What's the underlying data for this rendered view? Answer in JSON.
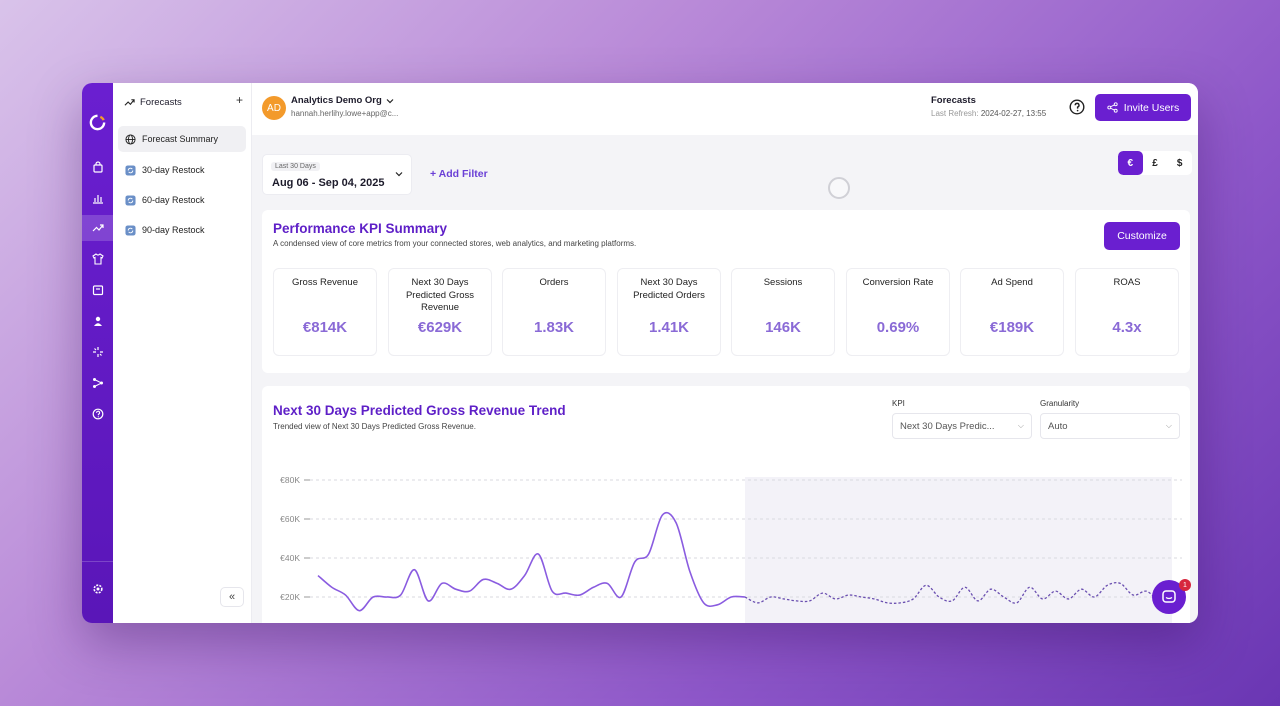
{
  "rail": {
    "icons": [
      "logo-icon",
      "shopping-bag-icon",
      "bar-chart-icon",
      "trending-up-icon",
      "shirt-icon",
      "box-icon",
      "user-icon",
      "sparkle-icon",
      "network-icon",
      "help-icon",
      "settings-icon"
    ]
  },
  "sidebar": {
    "title": "Forecasts",
    "add": "+",
    "items": [
      {
        "label": "Forecast Summary",
        "icon": "globe-icon"
      },
      {
        "label": "30-day Restock",
        "icon": "restock-icon"
      },
      {
        "label": "60-day Restock",
        "icon": "restock-icon"
      },
      {
        "label": "90-day Restock",
        "icon": "restock-icon"
      }
    ],
    "collapse": "«"
  },
  "header": {
    "avatar": "AD",
    "org_name": "Analytics Demo Org",
    "org_email": "hannah.herlihy.lowe+app@c...",
    "title": "Forecasts",
    "refresh_label": "Last Refresh:",
    "refresh_value": "2024-02-27, 13:55",
    "invite_label": "Invite Users"
  },
  "filters": {
    "date_label": "Last 30 Days",
    "date_value": "Aug 06 - Sep 04, 2025",
    "add_filter": "+ Add Filter",
    "currencies": [
      "€",
      "£",
      "$"
    ],
    "selected_currency": "€"
  },
  "kpi": {
    "title": "Performance KPI Summary",
    "subtitle": "A condensed view of core metrics from your connected stores, web analytics, and marketing platforms.",
    "customize": "Customize",
    "tiles": [
      {
        "label": "Gross Revenue",
        "value": "€814K"
      },
      {
        "label": "Next 30 Days Predicted Gross Revenue",
        "value": "€629K"
      },
      {
        "label": "Orders",
        "value": "1.83K"
      },
      {
        "label": "Next 30 Days Predicted Orders",
        "value": "1.41K"
      },
      {
        "label": "Sessions",
        "value": "146K"
      },
      {
        "label": "Conversion Rate",
        "value": "0.69%"
      },
      {
        "label": "Ad Spend",
        "value": "€189K"
      },
      {
        "label": "ROAS",
        "value": "4.3x"
      }
    ]
  },
  "trend": {
    "title": "Next 30 Days Predicted Gross Revenue Trend",
    "subtitle": "Trended view of Next 30 Days Predicted Gross Revenue.",
    "kpi_label": "KPI",
    "kpi_value": "Next 30 Days Predic...",
    "granularity_label": "Granularity",
    "granularity_value": "Auto"
  },
  "chat": {
    "badge": "1"
  },
  "colors": {
    "accent": "#6a1fd0",
    "kpi_value": "#8a6ad6",
    "line": "#8a5ce0"
  },
  "chart_data": {
    "type": "line",
    "yticks": [
      "€80K",
      "€60K",
      "€40K",
      "€20K"
    ],
    "ylim": [
      0,
      80000
    ],
    "grid": true,
    "series": [
      {
        "values": [
          31000,
          25000,
          21000,
          13000,
          20000,
          20000,
          21000,
          34000,
          18000,
          27000,
          24000,
          23000,
          29000,
          27000,
          24000,
          31000,
          42000,
          23000,
          22000,
          21000,
          25000,
          27000,
          20000,
          38000,
          42000,
          62000,
          58000,
          33000,
          17000,
          16000,
          20000,
          20000
        ],
        "style": "solid"
      },
      {
        "values": [
          20000,
          17000,
          20000,
          19000,
          18000,
          18000,
          22000,
          19000,
          21000,
          20000,
          19000,
          17000,
          17000,
          19000,
          26000,
          20000,
          18000,
          25000,
          18000,
          24000,
          20000,
          17000,
          25000,
          19000,
          23000,
          19000,
          24000,
          20000,
          26000,
          27000,
          21000,
          23000,
          19000,
          24000
        ],
        "style": "dashed",
        "forecast": true
      }
    ]
  }
}
